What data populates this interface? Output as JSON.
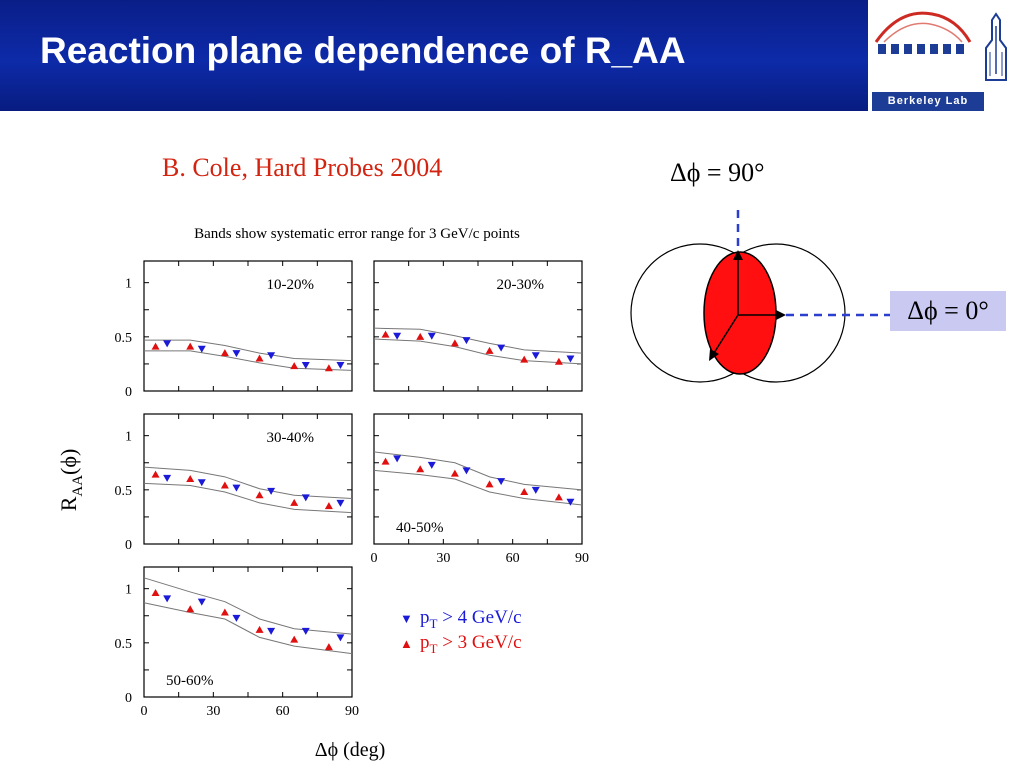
{
  "slide": {
    "title": "Reaction plane dependence of R_AA",
    "citation": "B. Cole, Hard Probes 2004",
    "logo_text": "Berkeley Lab"
  },
  "diagram": {
    "label_top": "Δϕ = 90°",
    "label_right": "Δϕ = 0°"
  },
  "chart_data": {
    "type": "scatter",
    "title": "Bands show systematic error range for 3 GeV/c points",
    "xlabel": "Δϕ (deg)",
    "ylabel": "R",
    "ylabel_sub": "AA",
    "ylabel_arg": "(ϕ)",
    "xlim": [
      0,
      90
    ],
    "ylim": [
      0,
      1.2
    ],
    "xticks": [
      "0",
      "30",
      "60",
      "90"
    ],
    "yticks": [
      "0",
      "0.5",
      "1"
    ],
    "legend": [
      {
        "symbol": "▼",
        "label": "p",
        "sub": "T",
        "rest": " > 4 GeV/c",
        "color": "#1a1ad8"
      },
      {
        "symbol": "▲",
        "label": "p",
        "sub": "T",
        "rest": " > 3 GeV/c",
        "color": "#e01010"
      }
    ],
    "panels": [
      {
        "label": "10-20%",
        "series": [
          {
            "x": [
              10,
              25,
              40,
              55,
              70,
              85
            ],
            "y": [
              0.44,
              0.39,
              0.35,
              0.33,
              0.24,
              0.24
            ]
          },
          {
            "x": [
              5,
              20,
              35,
              50,
              65,
              80
            ],
            "y": [
              0.41,
              0.41,
              0.35,
              0.3,
              0.23,
              0.21
            ]
          }
        ],
        "band_upper": {
          "x": [
            0,
            20,
            35,
            50,
            65,
            90
          ],
          "y": [
            0.47,
            0.47,
            0.42,
            0.35,
            0.3,
            0.28
          ]
        },
        "band_lower": {
          "x": [
            0,
            20,
            35,
            50,
            65,
            90
          ],
          "y": [
            0.37,
            0.37,
            0.32,
            0.26,
            0.21,
            0.19
          ]
        }
      },
      {
        "label": "20-30%",
        "series": [
          {
            "x": [
              10,
              25,
              40,
              55,
              70,
              85
            ],
            "y": [
              0.51,
              0.51,
              0.47,
              0.4,
              0.33,
              0.3
            ]
          },
          {
            "x": [
              5,
              20,
              35,
              50,
              65,
              80
            ],
            "y": [
              0.52,
              0.5,
              0.44,
              0.37,
              0.29,
              0.27
            ]
          }
        ],
        "band_upper": {
          "x": [
            0,
            20,
            35,
            50,
            65,
            90
          ],
          "y": [
            0.58,
            0.57,
            0.51,
            0.44,
            0.38,
            0.35
          ]
        },
        "band_lower": {
          "x": [
            0,
            20,
            35,
            50,
            65,
            90
          ],
          "y": [
            0.48,
            0.46,
            0.41,
            0.33,
            0.28,
            0.25
          ]
        }
      },
      {
        "label": "30-40%",
        "series": [
          {
            "x": [
              10,
              25,
              40,
              55,
              70,
              85
            ],
            "y": [
              0.61,
              0.57,
              0.52,
              0.49,
              0.43,
              0.38
            ]
          },
          {
            "x": [
              5,
              20,
              35,
              50,
              65,
              80
            ],
            "y": [
              0.64,
              0.6,
              0.54,
              0.45,
              0.38,
              0.35
            ]
          }
        ],
        "band_upper": {
          "x": [
            0,
            20,
            35,
            50,
            65,
            90
          ],
          "y": [
            0.71,
            0.68,
            0.62,
            0.51,
            0.45,
            0.42
          ]
        },
        "band_lower": {
          "x": [
            0,
            20,
            35,
            50,
            65,
            90
          ],
          "y": [
            0.56,
            0.54,
            0.48,
            0.38,
            0.32,
            0.29
          ]
        }
      },
      {
        "label": "40-50%",
        "series": [
          {
            "x": [
              10,
              25,
              40,
              55,
              70,
              85
            ],
            "y": [
              0.79,
              0.73,
              0.68,
              0.58,
              0.5,
              0.39
            ]
          },
          {
            "x": [
              5,
              20,
              35,
              50,
              65,
              80
            ],
            "y": [
              0.76,
              0.69,
              0.65,
              0.55,
              0.48,
              0.43
            ]
          }
        ],
        "band_upper": {
          "x": [
            0,
            20,
            35,
            50,
            65,
            90
          ],
          "y": [
            0.85,
            0.8,
            0.75,
            0.62,
            0.55,
            0.5
          ]
        },
        "band_lower": {
          "x": [
            0,
            20,
            35,
            50,
            65,
            90
          ],
          "y": [
            0.68,
            0.64,
            0.6,
            0.48,
            0.42,
            0.36
          ]
        }
      },
      {
        "label": "50-60%",
        "series": [
          {
            "x": [
              10,
              25,
              40,
              55,
              70,
              85
            ],
            "y": [
              0.91,
              0.88,
              0.73,
              0.61,
              0.61,
              0.55
            ]
          },
          {
            "x": [
              5,
              20,
              35,
              50,
              65,
              80
            ],
            "y": [
              0.96,
              0.81,
              0.78,
              0.62,
              0.53,
              0.46
            ]
          }
        ],
        "band_upper": {
          "x": [
            0,
            20,
            35,
            50,
            65,
            90
          ],
          "y": [
            1.1,
            0.97,
            0.88,
            0.72,
            0.63,
            0.58
          ]
        },
        "band_lower": {
          "x": [
            0,
            20,
            35,
            50,
            65,
            90
          ],
          "y": [
            0.87,
            0.78,
            0.72,
            0.55,
            0.47,
            0.4
          ]
        }
      }
    ]
  },
  "colors": {
    "banner": "#0d2aa8",
    "citation": "#d22410",
    "down_marker": "#1a1ad8",
    "up_marker": "#e01010",
    "ellipse_fill": "#ff0f0f",
    "dashed_line": "#2a3fd0",
    "label_box": "#c9c9f2"
  }
}
